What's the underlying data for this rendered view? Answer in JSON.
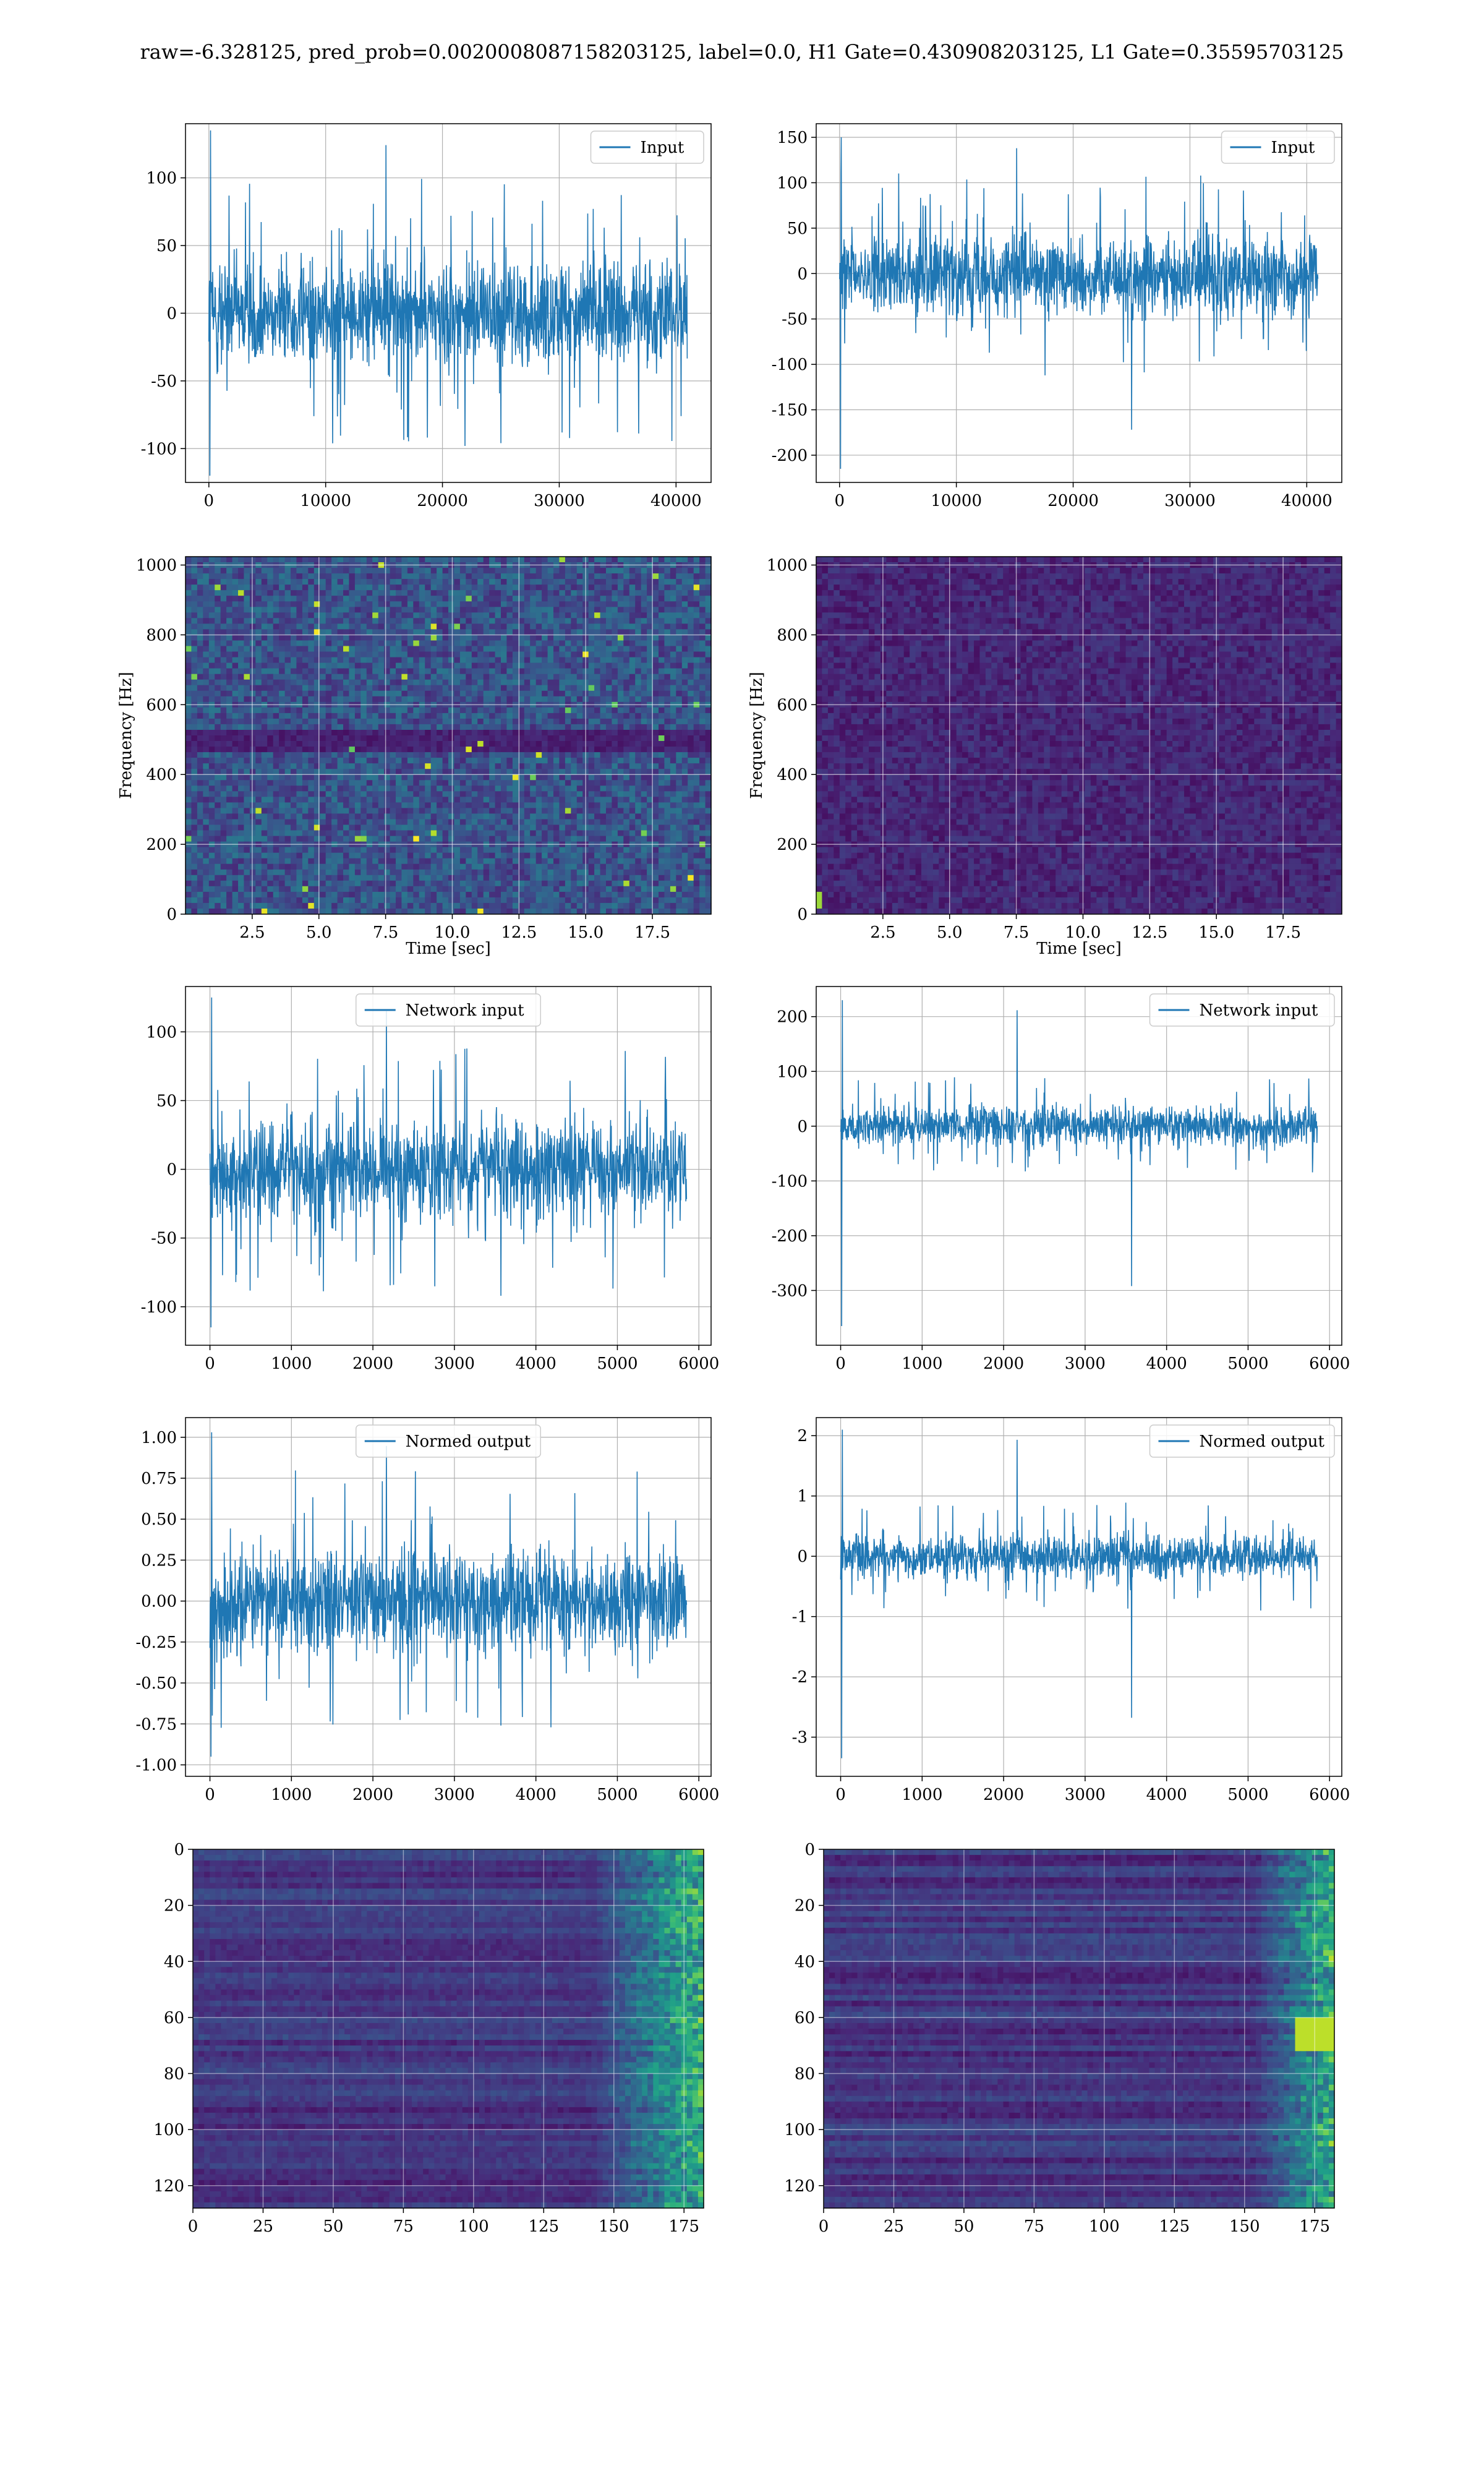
{
  "figure": {
    "title": "raw=-6.328125, pred_prob=0.0020008087158203125, label=0.0, H1 Gate=0.430908203125, L1 Gate=0.35595703125"
  },
  "colors": {
    "line": "#1f77b4",
    "grid": "#b0b0b0",
    "viridis": [
      "#440154",
      "#482878",
      "#3e4989",
      "#31688e",
      "#26828e",
      "#1f9e89",
      "#35b779",
      "#6ece58",
      "#b5de2b",
      "#fde725"
    ]
  },
  "chart_data": [
    {
      "id": "h1-input",
      "type": "line",
      "title": "",
      "xlabel": "",
      "ylabel": "",
      "series": [
        {
          "name": "Input",
          "n": 40960,
          "mean": 0,
          "band": [
            -50,
            50
          ],
          "spikes_max": 135,
          "spikes_min": -120
        }
      ],
      "xlim": [
        -2000,
        43000
      ],
      "ylim": [
        -125,
        140
      ],
      "xticks": [
        0,
        10000,
        20000,
        30000,
        40000
      ],
      "yticks": [
        -100,
        -50,
        0,
        50,
        100
      ],
      "legend": "upper right",
      "grid": true
    },
    {
      "id": "l1-input",
      "type": "line",
      "title": "",
      "xlabel": "",
      "ylabel": "",
      "series": [
        {
          "name": "Input",
          "n": 40960,
          "mean": 0,
          "band": [
            -60,
            55
          ],
          "spikes_max": 150,
          "spikes_min": -215
        }
      ],
      "xlim": [
        -2000,
        43000
      ],
      "ylim": [
        -230,
        165
      ],
      "xticks": [
        0,
        10000,
        20000,
        30000,
        40000
      ],
      "yticks": [
        -200,
        -150,
        -100,
        -50,
        0,
        50,
        100,
        150
      ],
      "legend": "upper right",
      "grid": true
    },
    {
      "id": "h1-spectrogram",
      "type": "heatmap",
      "title": "",
      "xlabel": "Time [sec]",
      "ylabel": "Frequency [Hz]",
      "xlim": [
        0,
        19.7
      ],
      "ylim": [
        0,
        1024
      ],
      "xticks": [
        "2.5",
        "5.0",
        "7.5",
        "10.0",
        "12.5",
        "15.0",
        "17.5"
      ],
      "yticks": [
        0,
        200,
        400,
        600,
        800,
        1000
      ],
      "intensity": "noisy, brighter overall, dark horizontal band near 500 Hz",
      "grid": true
    },
    {
      "id": "l1-spectrogram",
      "type": "heatmap",
      "title": "",
      "xlabel": "Time [sec]",
      "ylabel": "Frequency [Hz]",
      "xlim": [
        0,
        19.7
      ],
      "ylim": [
        0,
        1024
      ],
      "xticks": [
        "2.5",
        "5.0",
        "7.5",
        "10.0",
        "12.5",
        "15.0",
        "17.5"
      ],
      "yticks": [
        0,
        200,
        400,
        600,
        800,
        1000
      ],
      "intensity": "mostly dark, bright spot near t=0, 40 Hz",
      "grid": true
    },
    {
      "id": "h1-network-input",
      "type": "line",
      "title": "",
      "xlabel": "",
      "ylabel": "",
      "series": [
        {
          "name": "Network input",
          "n": 5850,
          "mean": 0,
          "band": [
            -45,
            45
          ],
          "spikes_max": 125,
          "spikes_min": -115
        }
      ],
      "xlim": [
        -300,
        6150
      ],
      "ylim": [
        -128,
        133
      ],
      "xticks": [
        0,
        1000,
        2000,
        3000,
        4000,
        5000,
        6000
      ],
      "yticks": [
        -100,
        -50,
        0,
        50,
        100
      ],
      "legend": "upper center",
      "grid": true
    },
    {
      "id": "l1-network-input",
      "type": "line",
      "title": "",
      "xlabel": "",
      "ylabel": "",
      "series": [
        {
          "name": "Network input",
          "n": 5850,
          "mean": 0,
          "band": [
            -45,
            45
          ],
          "spikes_max": 230,
          "spikes_min": -365
        }
      ],
      "xlim": [
        -300,
        6150
      ],
      "ylim": [
        -400,
        255
      ],
      "xticks": [
        0,
        1000,
        2000,
        3000,
        4000,
        5000,
        6000
      ],
      "yticks": [
        -300,
        -200,
        -100,
        0,
        100,
        200
      ],
      "legend": "upper right",
      "grid": true
    },
    {
      "id": "h1-normed-output",
      "type": "line",
      "title": "",
      "xlabel": "",
      "ylabel": "",
      "series": [
        {
          "name": "Normed output",
          "n": 5850,
          "mean": 0,
          "band": [
            -0.4,
            0.4
          ],
          "spikes_max": 1.03,
          "spikes_min": -0.95
        }
      ],
      "xlim": [
        -300,
        6150
      ],
      "ylim": [
        -1.07,
        1.12
      ],
      "xticks": [
        0,
        1000,
        2000,
        3000,
        4000,
        5000,
        6000
      ],
      "yticks": [
        "-1.00",
        "-0.75",
        "-0.50",
        "-0.25",
        "0.00",
        "0.25",
        "0.50",
        "0.75",
        "1.00"
      ],
      "legend": "upper center",
      "grid": true
    },
    {
      "id": "l1-normed-output",
      "type": "line",
      "title": "",
      "xlabel": "",
      "ylabel": "",
      "series": [
        {
          "name": "Normed output",
          "n": 5850,
          "mean": 0,
          "band": [
            -0.45,
            0.45
          ],
          "spikes_max": 2.1,
          "spikes_min": -3.35
        }
      ],
      "xlim": [
        -300,
        6150
      ],
      "ylim": [
        -3.65,
        2.3
      ],
      "xticks": [
        0,
        1000,
        2000,
        3000,
        4000,
        5000,
        6000
      ],
      "yticks": [
        -3,
        -2,
        -1,
        0,
        1,
        2
      ],
      "legend": "upper right",
      "grid": true
    },
    {
      "id": "h1-feature-map",
      "type": "heatmap",
      "title": "",
      "xlabel": "",
      "ylabel": "",
      "rows": 128,
      "cols": 182,
      "xlim": [
        0,
        182
      ],
      "ylim": [
        128,
        0
      ],
      "xticks": [
        0,
        25,
        50,
        75,
        100,
        125,
        150,
        175
      ],
      "yticks": [
        0,
        20,
        40,
        60,
        80,
        100,
        120
      ],
      "intensity": "dark with horizontal streaks, brighter columns from 150 to 182",
      "grid": true
    },
    {
      "id": "l1-feature-map",
      "type": "heatmap",
      "title": "",
      "xlabel": "",
      "ylabel": "",
      "rows": 128,
      "cols": 182,
      "xlim": [
        0,
        182
      ],
      "ylim": [
        128,
        0
      ],
      "xticks": [
        0,
        25,
        50,
        75,
        100,
        125,
        150,
        175
      ],
      "yticks": [
        0,
        20,
        40,
        60,
        80,
        100,
        120
      ],
      "intensity": "dark with horizontal streaks, brighter columns from 160 to 182, bright spot near row 65",
      "grid": true
    }
  ]
}
